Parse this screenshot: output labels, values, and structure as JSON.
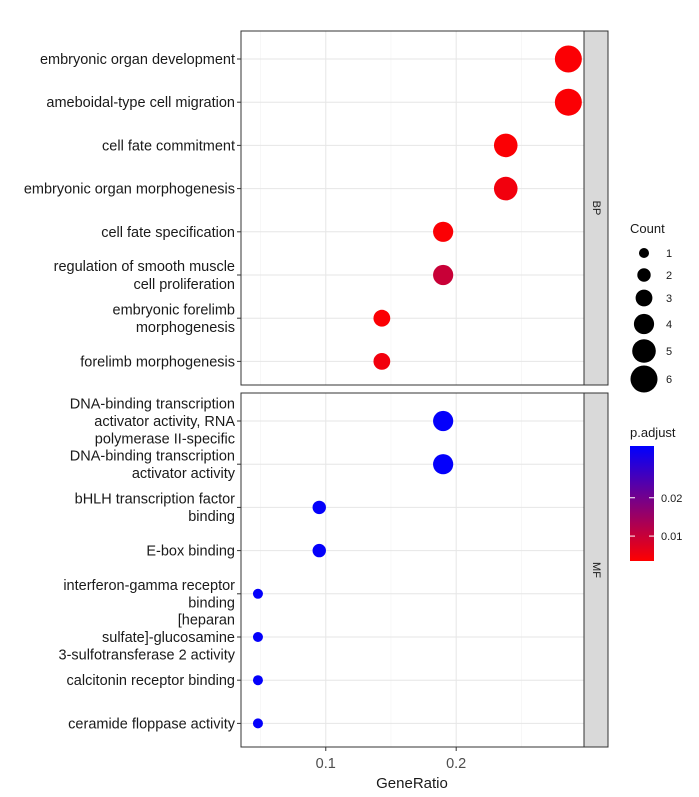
{
  "chart_data": {
    "type": "scatter",
    "xlabel": "GeneRatio",
    "xlim": [
      0.035,
      0.298
    ],
    "xticks": [
      0.1,
      0.2
    ],
    "xtick_labels": [
      "0.1",
      "0.2"
    ],
    "grid": true,
    "legend_placement": "right",
    "panels": [
      {
        "strip": "BP",
        "terms": [
          {
            "label": [
              "embryonic organ development"
            ],
            "gene_ratio": 0.286,
            "count": 6,
            "p_adjust": 0.004
          },
          {
            "label": [
              "ameboidal-type cell migration"
            ],
            "gene_ratio": 0.286,
            "count": 6,
            "p_adjust": 0.004
          },
          {
            "label": [
              "cell fate commitment"
            ],
            "gene_ratio": 0.238,
            "count": 5,
            "p_adjust": 0.004
          },
          {
            "label": [
              "embryonic organ morphogenesis"
            ],
            "gene_ratio": 0.238,
            "count": 5,
            "p_adjust": 0.005
          },
          {
            "label": [
              "cell fate specification"
            ],
            "gene_ratio": 0.19,
            "count": 4,
            "p_adjust": 0.004
          },
          {
            "label": [
              "regulation of smooth muscle",
              "cell proliferation"
            ],
            "gene_ratio": 0.19,
            "count": 4,
            "p_adjust": 0.01
          },
          {
            "label": [
              "embryonic forelimb",
              "morphogenesis"
            ],
            "gene_ratio": 0.143,
            "count": 3,
            "p_adjust": 0.004
          },
          {
            "label": [
              "forelimb morphogenesis"
            ],
            "gene_ratio": 0.143,
            "count": 3,
            "p_adjust": 0.005
          }
        ]
      },
      {
        "strip": "MF",
        "terms": [
          {
            "label": [
              "DNA-binding transcription",
              "activator activity, RNA",
              "polymerase II-specific"
            ],
            "gene_ratio": 0.19,
            "count": 4,
            "p_adjust": 0.033
          },
          {
            "label": [
              "DNA-binding transcription",
              "activator activity"
            ],
            "gene_ratio": 0.19,
            "count": 4,
            "p_adjust": 0.033
          },
          {
            "label": [
              "bHLH transcription factor",
              "binding"
            ],
            "gene_ratio": 0.095,
            "count": 2,
            "p_adjust": 0.033
          },
          {
            "label": [
              "E-box binding"
            ],
            "gene_ratio": 0.095,
            "count": 2,
            "p_adjust": 0.033
          },
          {
            "label": [
              "interferon-gamma receptor",
              "binding"
            ],
            "gene_ratio": 0.048,
            "count": 1,
            "p_adjust": 0.033
          },
          {
            "label": [
              "[heparan",
              "sulfate]-glucosamine",
              "3-sulfotransferase 2 activity"
            ],
            "gene_ratio": 0.048,
            "count": 1,
            "p_adjust": 0.033
          },
          {
            "label": [
              "calcitonin receptor binding"
            ],
            "gene_ratio": 0.048,
            "count": 1,
            "p_adjust": 0.033
          },
          {
            "label": [
              "ceramide floppase activity"
            ],
            "gene_ratio": 0.048,
            "count": 1,
            "p_adjust": 0.033
          }
        ]
      }
    ],
    "size_legend": {
      "title": "Count",
      "values": [
        1,
        2,
        3,
        4,
        5,
        6
      ],
      "labels": [
        "1",
        "2",
        "3",
        "4",
        "5",
        "6"
      ]
    },
    "color_legend": {
      "title": "p.adjust",
      "range": [
        0.0035,
        0.0335
      ],
      "ticks": [
        0.01,
        0.02
      ],
      "tick_labels": [
        "0.01",
        "0.02"
      ],
      "low_color": "#ff0000",
      "high_color": "#0000ff"
    }
  }
}
